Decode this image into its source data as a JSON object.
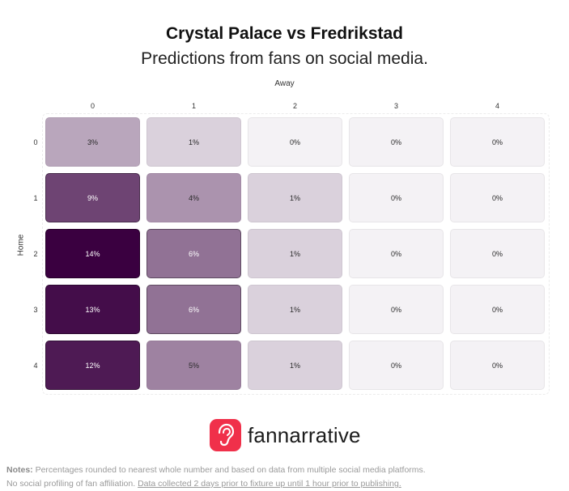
{
  "header": {
    "title": "Crystal Palace vs Fredrikstad",
    "subtitle": "Predictions from fans on social media."
  },
  "chart_data": {
    "type": "heatmap",
    "xlabel": "Away",
    "ylabel": "Home",
    "x_categories": [
      "0",
      "1",
      "2",
      "3",
      "4"
    ],
    "y_categories": [
      "0",
      "1",
      "2",
      "3",
      "4"
    ],
    "values": [
      [
        3,
        1,
        0,
        0,
        0
      ],
      [
        9,
        4,
        1,
        0,
        0
      ],
      [
        14,
        6,
        1,
        0,
        0
      ],
      [
        13,
        6,
        1,
        0,
        0
      ],
      [
        12,
        5,
        1,
        0,
        0
      ]
    ],
    "value_suffix": "%",
    "color_low": "#f4f2f5",
    "color_high": "#3a0040"
  },
  "logo": {
    "text": "fannarrative",
    "icon": "ear-icon",
    "brand_color": "#f0304a"
  },
  "notes": {
    "label": "Notes:",
    "line1": " Percentages rounded to nearest whole number and based on data from multiple social media platforms.",
    "line2": "No social profiling of fan affiliation. ",
    "line2_link": "Data collected 2 days prior to fixture up until 1 hour prior to publishing."
  }
}
